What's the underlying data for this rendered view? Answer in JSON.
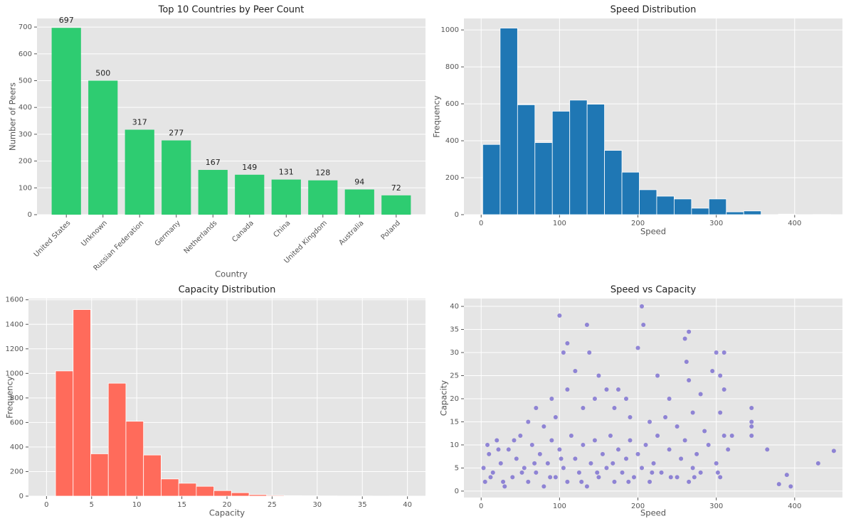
{
  "chart_data": [
    {
      "type": "bar",
      "title": "Top 10 Countries by Peer Count",
      "x_label": "Country",
      "y_label": "Number of Peers",
      "categories": [
        "United States",
        "Unknown",
        "Russian Federation",
        "Germany",
        "Netherlands",
        "Canada",
        "China",
        "United Kingdom",
        "Australia",
        "Poland"
      ],
      "values": [
        697,
        500,
        317,
        277,
        167,
        149,
        131,
        128,
        94,
        72
      ],
      "color": "#2ecc71",
      "ylim": [
        0,
        732
      ],
      "yticks": [
        0,
        100,
        200,
        300,
        400,
        500,
        600,
        700
      ],
      "grid": true
    },
    {
      "type": "histogram",
      "title": "Speed Distribution",
      "x_label": "Speed",
      "y_label": "Frequency",
      "bins": [
        2,
        24.2,
        46.4,
        68.6,
        90.8,
        113,
        135.2,
        157.4,
        179.6,
        201.8,
        224,
        246.2,
        268.4,
        290.6,
        312.8,
        335,
        357.2,
        379.4,
        401.6,
        423.8,
        446
      ],
      "values": [
        380,
        1010,
        595,
        390,
        560,
        620,
        598,
        348,
        230,
        135,
        100,
        85,
        35,
        85,
        15,
        20,
        0,
        3,
        0,
        1
      ],
      "color": "#1f77b4",
      "xlim": [
        -22,
        461
      ],
      "xticks": [
        0,
        100,
        200,
        300,
        400
      ],
      "ylim": [
        0,
        1062
      ],
      "yticks": [
        0,
        200,
        400,
        600,
        800,
        1000
      ],
      "grid": true
    },
    {
      "type": "histogram",
      "title": "Capacity Distribution",
      "x_label": "Capacity",
      "y_label": "Frequency",
      "bins": [
        1,
        2.95,
        4.9,
        6.85,
        8.8,
        10.75,
        12.7,
        14.65,
        16.6,
        18.55,
        20.5,
        22.45,
        24.4,
        26.35,
        28.3,
        30.25,
        32.2,
        34.15,
        36.1,
        38.05,
        40
      ],
      "values": [
        1020,
        1520,
        345,
        920,
        610,
        335,
        140,
        105,
        80,
        45,
        28,
        12,
        6,
        4,
        3,
        2,
        1,
        1,
        0,
        1
      ],
      "color": "#ff6b5b",
      "xlim": [
        -2,
        42
      ],
      "xticks": [
        0,
        5,
        10,
        15,
        20,
        25,
        30,
        35,
        40
      ],
      "ylim": [
        0,
        1610
      ],
      "yticks": [
        0,
        200,
        400,
        600,
        800,
        1000,
        1200,
        1400,
        1600
      ],
      "grid": true
    },
    {
      "type": "scatter",
      "title": "Speed vs Capacity",
      "x_label": "Speed",
      "y_label": "Capacity",
      "color": "#6a5acd",
      "x": [
        5,
        10,
        15,
        20,
        25,
        30,
        35,
        40,
        45,
        50,
        55,
        60,
        65,
        70,
        75,
        80,
        85,
        90,
        95,
        100,
        105,
        110,
        115,
        120,
        125,
        130,
        135,
        140,
        145,
        150,
        155,
        160,
        165,
        170,
        175,
        180,
        185,
        190,
        195,
        200,
        205,
        210,
        215,
        220,
        225,
        230,
        240,
        250,
        255,
        260,
        265,
        270,
        275,
        280,
        290,
        300,
        305,
        310,
        315,
        345,
        345,
        345,
        365,
        380,
        390,
        395,
        430,
        450,
        100,
        105,
        110,
        135,
        138,
        120,
        150,
        160,
        175,
        185,
        205,
        207,
        200,
        225,
        240,
        260,
        265,
        262,
        265,
        280,
        295,
        300,
        305,
        310,
        310,
        305,
        320,
        345,
        60,
        70,
        80,
        90,
        95,
        110,
        130,
        145,
        170,
        190,
        215,
        235,
        250,
        270,
        285,
        8,
        3,
        12,
        22,
        28,
        42,
        52,
        68,
        88,
        102,
        128,
        148,
        168,
        188,
        218,
        242,
        272,
        302
      ],
      "y": [
        2,
        8,
        4,
        11,
        6,
        1,
        9,
        3,
        7,
        12,
        5,
        2,
        10,
        4,
        8,
        1,
        6,
        11,
        3,
        9,
        5,
        2,
        12,
        7,
        4,
        10,
        1,
        6,
        11,
        3,
        8,
        5,
        12,
        2,
        9,
        4,
        7,
        11,
        3,
        8,
        5,
        10,
        2,
        6,
        12,
        4,
        9,
        3,
        7,
        11,
        2,
        5,
        8,
        4,
        10,
        6,
        3,
        12,
        9,
        15,
        12,
        18,
        9,
        1.5,
        3.5,
        1,
        6,
        8.7,
        38,
        30,
        32,
        36,
        30,
        26,
        25,
        22,
        22,
        20,
        40,
        36,
        31,
        25,
        20,
        33,
        34.5,
        28,
        24,
        21,
        26,
        30,
        25,
        30,
        22,
        17,
        12,
        14,
        15,
        18,
        14,
        20,
        16,
        22,
        18,
        20,
        18,
        16,
        15,
        16,
        14,
        17,
        13,
        10,
        5,
        3,
        9,
        2,
        11,
        4,
        6,
        3,
        7,
        2,
        4,
        6,
        2,
        4,
        3,
        3,
        4
      ],
      "xlim": [
        -22,
        461
      ],
      "xticks": [
        0,
        100,
        200,
        300,
        400
      ],
      "ylim": [
        -1.4,
        41.7
      ],
      "yticks": [
        0,
        5,
        10,
        15,
        20,
        25,
        30,
        35,
        40
      ],
      "grid": true
    }
  ]
}
